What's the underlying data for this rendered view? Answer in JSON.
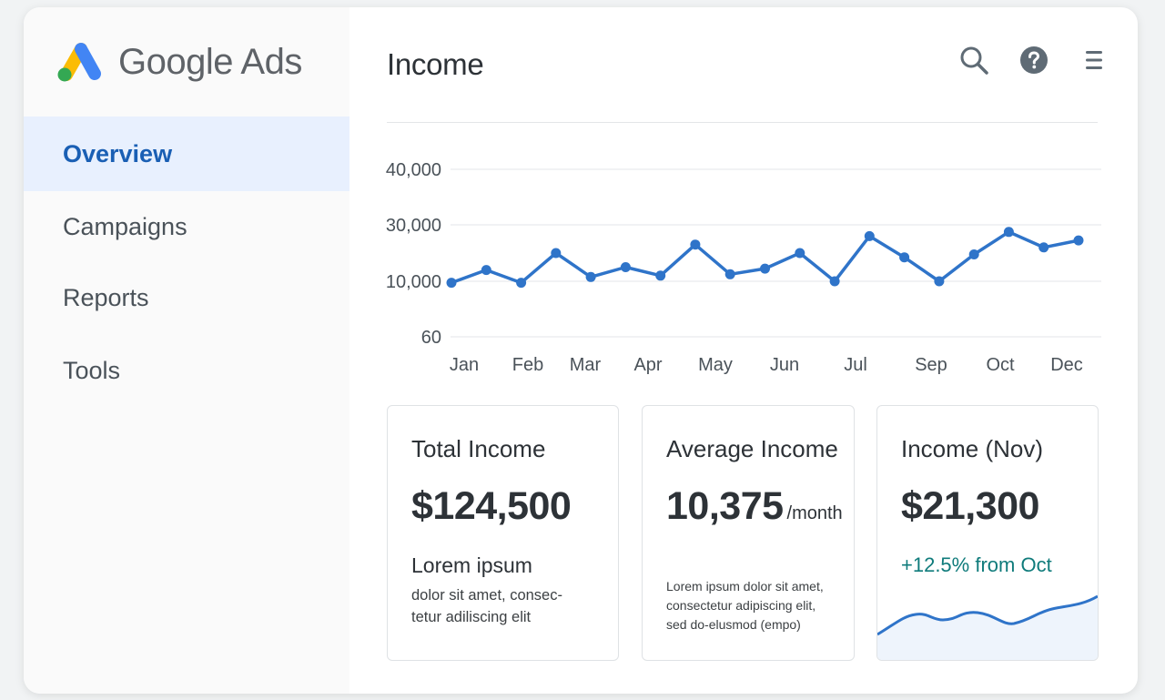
{
  "app": {
    "brand_name": "Google Ads"
  },
  "sidebar": {
    "items": [
      {
        "label": "Overview",
        "active": true
      },
      {
        "label": "Campaigns",
        "active": false
      },
      {
        "label": "Reports",
        "active": false
      },
      {
        "label": "Tools",
        "active": false
      }
    ]
  },
  "header": {
    "title": "Income",
    "icons": [
      "search-icon",
      "help-icon",
      "menu-icon"
    ]
  },
  "colors": {
    "accent": "#2f74c9",
    "active_nav_bg": "#e8f0fe",
    "active_nav_text": "#1a5fb4",
    "change_positive": "#0f7b7b"
  },
  "chart_data": {
    "type": "line",
    "title": "",
    "xlabel": "",
    "ylabel": "",
    "ytick_labels": [
      "40,000",
      "30,000",
      "10,000",
      "60"
    ],
    "xtick_labels": [
      "Jan",
      "Feb",
      "Mar",
      "Apr",
      "May",
      "Jun",
      "Jul",
      "Sep",
      "Oct",
      "Dec"
    ],
    "grid": true,
    "series": [
      {
        "values": [
          9500,
          14000,
          9500,
          20000,
          11500,
          15000,
          12000,
          23000,
          12500,
          14500,
          20000,
          10000,
          26000,
          18500,
          10000,
          19500,
          27500,
          22000,
          24500
        ]
      }
    ]
  },
  "cards": [
    {
      "title": "Total Income",
      "value": "$124,500",
      "subtitle": "Lorem ipsum",
      "desc_line1": "dolor sit amet, consec-",
      "desc_line2": "tetur adiliscing elit"
    },
    {
      "title": "Average Income",
      "value": "10,375",
      "unit": "/month",
      "desc_line1": "Lorem ipsum dolor sit amet,",
      "desc_line2": "consectetur adipiscing elit,",
      "desc_line3": "sed do-elusmod (empo)"
    },
    {
      "title": "Income (Nov)",
      "value": "$21,300",
      "change": "+12.5% from Oct"
    }
  ]
}
